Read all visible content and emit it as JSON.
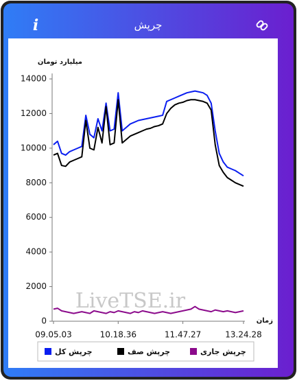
{
  "header": {
    "title": "چرپش",
    "info": "i"
  },
  "chart_data": {
    "type": "line",
    "y_label": "میلیارد تومان",
    "x_label": "زمان",
    "watermark": "LiveTSE.ir",
    "categories": [
      "09.05.03",
      null,
      null,
      null,
      null,
      null,
      null,
      null,
      null,
      null,
      null,
      null,
      null,
      null,
      null,
      null,
      "10.18.36",
      null,
      null,
      null,
      null,
      null,
      null,
      null,
      null,
      null,
      null,
      null,
      null,
      null,
      null,
      null,
      "11.47.27",
      null,
      null,
      null,
      null,
      null,
      null,
      null,
      null,
      null,
      null,
      null,
      null,
      null,
      null,
      "13.24.28"
    ],
    "ylim": [
      0,
      14000
    ],
    "yticks": [
      0,
      2000,
      4000,
      6000,
      8000,
      10000,
      12000,
      14000
    ],
    "grid": false,
    "legend": "bottom",
    "series": [
      {
        "name": "چرپش کل",
        "color": "#0a1ef0",
        "values": [
          10200,
          10400,
          9700,
          9600,
          9800,
          9900,
          10000,
          10100,
          11900,
          10800,
          10600,
          11700,
          11000,
          12600,
          11000,
          11100,
          13200,
          11000,
          11200,
          11400,
          11500,
          11600,
          11650,
          11700,
          11750,
          11800,
          11850,
          11900,
          12700,
          12800,
          12900,
          13000,
          13100,
          13200,
          13250,
          13300,
          13250,
          13200,
          13050,
          12600,
          11000,
          9700,
          9200,
          8900,
          8800,
          8700,
          8550,
          8400
        ]
      },
      {
        "name": "چرپش صف",
        "color": "#000000",
        "values": [
          9600,
          9700,
          9000,
          8950,
          9200,
          9300,
          9400,
          9500,
          11600,
          10000,
          9900,
          11200,
          10300,
          12400,
          10200,
          10300,
          12800,
          10300,
          10500,
          10700,
          10800,
          10900,
          11000,
          11100,
          11150,
          11250,
          11300,
          11400,
          12000,
          12300,
          12500,
          12600,
          12650,
          12750,
          12800,
          12800,
          12750,
          12700,
          12600,
          12200,
          10200,
          9000,
          8600,
          8300,
          8150,
          8000,
          7900,
          7800
        ]
      },
      {
        "name": "چرپش جاری",
        "color": "#8b0a8b",
        "values": [
          700,
          750,
          600,
          550,
          500,
          450,
          500,
          550,
          500,
          450,
          600,
          550,
          500,
          450,
          550,
          500,
          600,
          550,
          500,
          450,
          550,
          500,
          600,
          550,
          500,
          450,
          500,
          550,
          500,
          450,
          500,
          550,
          600,
          650,
          700,
          850,
          700,
          650,
          600,
          550,
          650,
          600,
          550,
          600,
          550,
          500,
          550,
          600
        ]
      }
    ]
  }
}
